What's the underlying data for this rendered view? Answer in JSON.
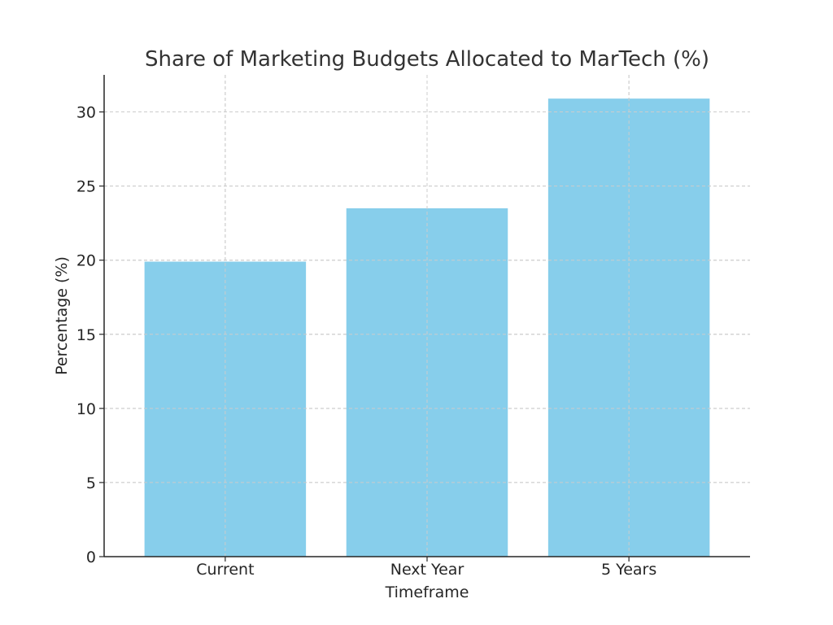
{
  "chart_data": {
    "type": "bar",
    "title": "Share of Marketing Budgets Allocated to MarTech (%)",
    "xlabel": "Timeframe",
    "ylabel": "Percentage (%)",
    "categories": [
      "Current",
      "Next Year",
      "5 Years"
    ],
    "values": [
      19.9,
      23.5,
      30.9
    ],
    "ylim": [
      0,
      32.5
    ],
    "yticks": [
      0,
      5,
      10,
      15,
      20,
      25,
      30
    ],
    "grid": true,
    "bar_color": "#87CEEB"
  }
}
